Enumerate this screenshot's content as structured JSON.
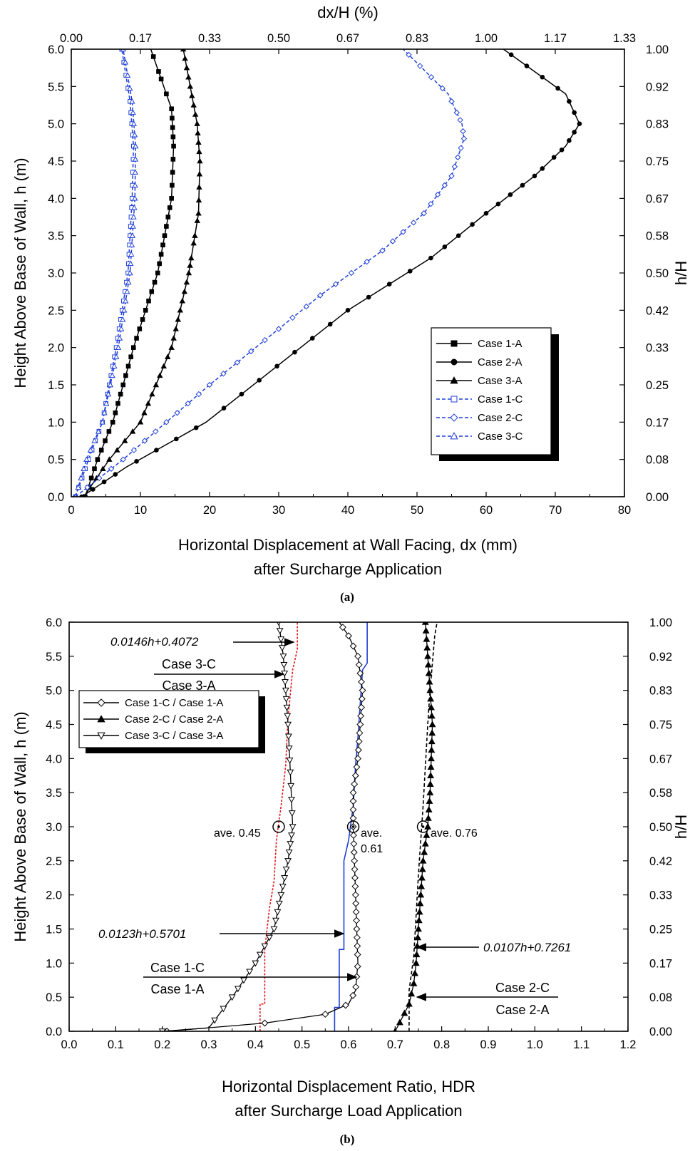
{
  "chart_data": [
    {
      "type": "line",
      "panel_label": "(a)",
      "xlabel": "Horizontal Displacement at Wall Facing, dx (mm)",
      "xlabel2": "after Surcharge Application",
      "ylabel": "Height Above Base of Wall, h (m)",
      "x2label": "dx/H (%)",
      "y2label": "h/H",
      "xlim": [
        0,
        80
      ],
      "ylim": [
        0,
        6
      ],
      "x_ticks": [
        "0",
        "10",
        "20",
        "30",
        "40",
        "50",
        "60",
        "70",
        "80"
      ],
      "y_ticks": [
        "0.0",
        "0.5",
        "1.0",
        "1.5",
        "2.0",
        "2.5",
        "3.0",
        "3.5",
        "4.0",
        "4.5",
        "5.0",
        "5.5",
        "6.0"
      ],
      "x2_ticks": [
        "0.00",
        "0.17",
        "0.33",
        "0.50",
        "0.67",
        "0.83",
        "1.00",
        "1.17",
        "1.33"
      ],
      "y2_ticks": [
        "0.00",
        "0.08",
        "0.17",
        "0.25",
        "0.33",
        "0.42",
        "0.50",
        "0.58",
        "0.67",
        "0.75",
        "0.83",
        "0.92",
        "1.00"
      ],
      "legend_position": "lower-right",
      "series": [
        {
          "name": "Case 1-A",
          "color": "#000000",
          "marker": "square-filled",
          "dash": "solid",
          "x": [
            2.0,
            3.8,
            6.0,
            9.0,
            12.5,
            14.5,
            14.8,
            14.5,
            11.5
          ],
          "y": [
            0.0,
            0.5,
            1.0,
            2.0,
            3.0,
            4.0,
            4.7,
            5.2,
            6.0
          ]
        },
        {
          "name": "Case 2-A",
          "color": "#000000",
          "marker": "circle-filled",
          "dash": "solid",
          "x": [
            1.5,
            8.0,
            19.5,
            40.0,
            52.0,
            60.0,
            67.0,
            71.5,
            73.5,
            71.5,
            62.5
          ],
          "y": [
            0.0,
            0.4,
            1.0,
            2.5,
            3.2,
            3.8,
            4.3,
            4.7,
            5.0,
            5.4,
            6.0
          ]
        },
        {
          "name": "Case 3-A",
          "color": "#000000",
          "marker": "triangle-filled",
          "dash": "solid",
          "x": [
            1.8,
            5.5,
            10.0,
            14.5,
            17.0,
            18.4,
            18.6,
            18.2,
            16.2
          ],
          "y": [
            0.0,
            0.5,
            1.0,
            2.0,
            3.0,
            3.8,
            4.5,
            5.0,
            6.0
          ]
        },
        {
          "name": "Case 1-C",
          "color": "#1f3fd6",
          "marker": "square-open",
          "dash": "dashed",
          "x": [
            0.6,
            2.5,
            4.5,
            6.5,
            8.2,
            8.8,
            9.0,
            8.5,
            7.3
          ],
          "y": [
            0.0,
            0.5,
            1.0,
            2.0,
            3.0,
            4.0,
            4.7,
            5.3,
            6.0
          ]
        },
        {
          "name": "Case 2-C",
          "color": "#1f3fd6",
          "marker": "diamond-open",
          "dash": "dashed",
          "x": [
            0.6,
            7.5,
            20.0,
            36.0,
            45.0,
            51.0,
            55.0,
            56.8,
            56.5,
            54.5,
            48.0
          ],
          "y": [
            0.0,
            0.5,
            1.5,
            2.7,
            3.3,
            3.8,
            4.3,
            4.8,
            5.0,
            5.4,
            6.0
          ]
        },
        {
          "name": "Case 3-C",
          "color": "#1f3fd6",
          "marker": "triangle-open",
          "dash": "dashed",
          "x": [
            0.6,
            2.2,
            4.5,
            6.8,
            8.5,
            9.2,
            9.3,
            8.8,
            7.5
          ],
          "y": [
            0.0,
            0.5,
            1.0,
            2.0,
            3.0,
            4.0,
            4.7,
            5.3,
            6.0
          ]
        }
      ]
    },
    {
      "type": "line",
      "panel_label": "(b)",
      "xlabel": "Horizontal Displacement Ratio, HDR",
      "xlabel2": "after Surcharge Load Application",
      "ylabel": "Height Above Base of Wall, h (m)",
      "y2label": "h/H",
      "xlim": [
        0,
        1.2
      ],
      "ylim": [
        0,
        6
      ],
      "x_ticks": [
        "0.0",
        "0.1",
        "0.2",
        "0.3",
        "0.4",
        "0.5",
        "0.6",
        "0.7",
        "0.8",
        "0.9",
        "1.0",
        "1.1",
        "1.2"
      ],
      "y_ticks": [
        "0.0",
        "0.5",
        "1.0",
        "1.5",
        "2.0",
        "2.5",
        "3.0",
        "3.5",
        "4.0",
        "4.5",
        "5.0",
        "5.5",
        "6.0"
      ],
      "y2_ticks": [
        "0.00",
        "0.08",
        "0.17",
        "0.25",
        "0.33",
        "0.42",
        "0.50",
        "0.58",
        "0.67",
        "0.75",
        "0.83",
        "0.92",
        "1.00"
      ],
      "legend_position": "upper-left",
      "series": [
        {
          "name": "Case 1-C / Case 1-A",
          "color": "#000000",
          "marker": "diamond-open",
          "dash": "solid",
          "x": [
            0.21,
            0.42,
            0.55,
            0.6,
            0.615,
            0.62,
            0.615,
            0.61,
            0.61,
            0.62,
            0.63,
            0.62,
            0.6,
            0.58
          ],
          "y": [
            0.0,
            0.12,
            0.25,
            0.4,
            0.6,
            1.0,
            2.0,
            3.0,
            3.5,
            4.0,
            5.0,
            5.5,
            5.8,
            6.0
          ]
        },
        {
          "name": "Case 2-C / Case 2-A",
          "color": "#000000",
          "marker": "triangle-filled",
          "dash": "solid",
          "x": [
            0.7,
            0.71,
            0.73,
            0.74,
            0.745,
            0.75,
            0.755,
            0.76,
            0.77,
            0.775,
            0.78,
            0.775,
            0.77,
            0.765
          ],
          "y": [
            0.0,
            0.13,
            0.4,
            0.7,
            1.0,
            1.5,
            2.0,
            2.5,
            3.0,
            3.5,
            4.5,
            5.0,
            5.5,
            6.0
          ]
        },
        {
          "name": "Case 3-C / Case 3-A",
          "color": "#000000",
          "marker": "triangle-down-open",
          "dash": "solid",
          "x": [
            0.2,
            0.3,
            0.35,
            0.4,
            0.44,
            0.47,
            0.48,
            0.475,
            0.47,
            0.465,
            0.46,
            0.45
          ],
          "y": [
            0.0,
            0.05,
            0.5,
            1.0,
            1.5,
            2.5,
            3.0,
            3.8,
            4.5,
            5.0,
            5.5,
            6.0
          ]
        }
      ],
      "fit_lines": [
        {
          "label": "0.0146h+0.4072",
          "color": "#e8151b",
          "dash": "dotted",
          "x": [
            0.41,
            0.41,
            0.42,
            0.42,
            0.43,
            0.44,
            0.445,
            0.455,
            0.465,
            0.47,
            0.48,
            0.49,
            0.49
          ],
          "y": [
            0.0,
            0.4,
            0.4,
            1.2,
            1.8,
            2.2,
            2.8,
            3.3,
            3.9,
            4.6,
            5.3,
            5.6,
            6.0
          ]
        },
        {
          "label": "0.0123h+0.5701",
          "color": "#1f3fd6",
          "dash": "solid",
          "x": [
            0.57,
            0.57,
            0.58,
            0.58,
            0.59,
            0.59,
            0.6,
            0.61,
            0.615,
            0.62,
            0.625,
            0.63,
            0.64,
            0.64
          ],
          "y": [
            0.0,
            0.35,
            0.35,
            1.2,
            1.2,
            2.5,
            2.8,
            3.3,
            3.9,
            4.3,
            4.8,
            5.3,
            5.4,
            6.0
          ]
        },
        {
          "label": "0.0107h+0.7261",
          "color": "#000000",
          "dash": "dashed",
          "x": [
            0.73,
            0.73,
            0.74,
            0.745,
            0.75,
            0.755,
            0.76,
            0.765,
            0.77,
            0.775,
            0.78,
            0.785,
            0.79
          ],
          "y": [
            0.0,
            0.6,
            1.1,
            1.7,
            2.3,
            2.8,
            3.3,
            3.9,
            4.5,
            5.0,
            5.4,
            5.8,
            6.0
          ]
        }
      ],
      "annotations": {
        "ave_3c": "ave. 0.45",
        "ave_1c_a": "ave.",
        "ave_1c_b": "0.61",
        "ave_2c": "ave. 0.76",
        "eq_3": "0.0146h+0.4072",
        "eq_1": "0.0123h+0.5701",
        "eq_2": "0.0107h+0.7261",
        "ratio3_num": "Case 3-C",
        "ratio3_den": "Case 3-A",
        "ratio1_num": "Case 1-C",
        "ratio1_den": "Case 1-A",
        "ratio2_num": "Case 2-C",
        "ratio2_den": "Case 2-A"
      },
      "average_points": [
        {
          "x": 0.45,
          "y": 3.0
        },
        {
          "x": 0.61,
          "y": 3.0
        },
        {
          "x": 0.76,
          "y": 3.0
        }
      ]
    }
  ]
}
